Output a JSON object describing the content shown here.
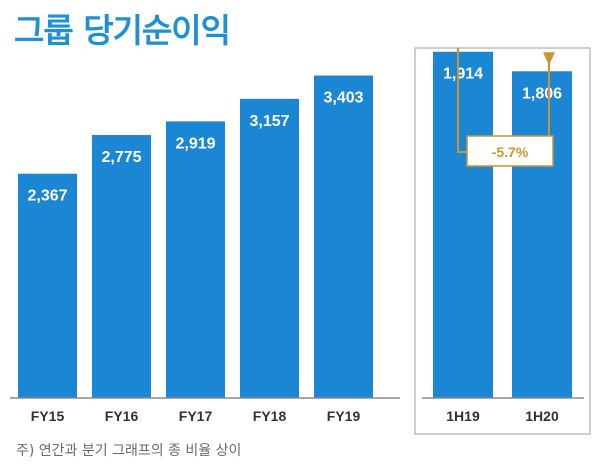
{
  "title": "그룹 당기순이익",
  "note": "주) 연간과 분기 그래프의 종 비율 상이",
  "colors": {
    "bar": "#1a86d4",
    "title": "#1f8fd6",
    "annotation": "#c9962e",
    "frame": "#bdbdbd"
  },
  "chart_data": [
    {
      "type": "bar",
      "categories": [
        "FY15",
        "FY16",
        "FY17",
        "FY18",
        "FY19"
      ],
      "values": [
        2367,
        2775,
        2919,
        3157,
        3403
      ],
      "value_labels": [
        "2,367",
        "2,775",
        "2,919",
        "3,157",
        "3,403"
      ],
      "title": "",
      "xlabel": "",
      "ylabel": "",
      "ylim": [
        0,
        4200
      ]
    },
    {
      "type": "bar",
      "categories": [
        "1H19",
        "1H20"
      ],
      "values": [
        1914,
        1806
      ],
      "value_labels": [
        "1,914",
        "1,806"
      ],
      "annotation": "-5.7%",
      "title": "",
      "xlabel": "",
      "ylabel": "",
      "ylim": [
        0,
        2200
      ]
    }
  ]
}
